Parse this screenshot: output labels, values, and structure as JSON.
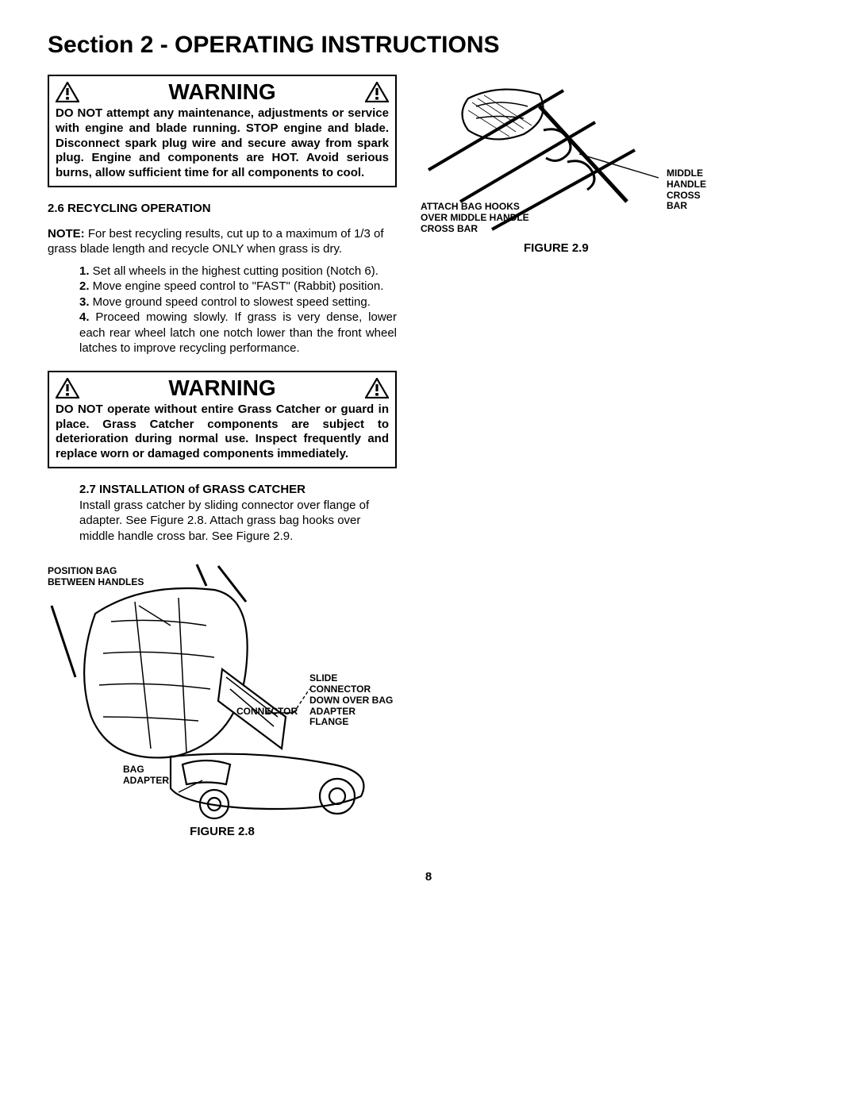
{
  "page": {
    "title": "Section 2 - OPERATING INSTRUCTIONS",
    "pageNumber": "8"
  },
  "warning1": {
    "title": "WARNING",
    "body": "DO NOT attempt any maintenance, adjustments or service with engine and blade running. STOP engine and blade. Disconnect spark plug wire and secure away from spark plug. Engine and components are HOT. Avoid serious burns, allow sufficient time for all components to cool."
  },
  "section26": {
    "heading": "2.6 RECYCLING OPERATION",
    "noteLabel": "NOTE:",
    "noteBody": " For best recycling results, cut up to a maximum of 1/3 of grass blade length and recycle ONLY when grass is dry.",
    "step1num": "1.",
    "step1": " Set all wheels in the highest cutting position (Notch 6).",
    "step2num": "2.",
    "step2": " Move engine speed control to \"FAST\" (Rabbit) position.",
    "step3num": "3.",
    "step3": " Move ground speed control to slowest speed setting.",
    "step4num": "4.",
    "step4": " Proceed mowing slowly. If grass is very dense, lower each rear wheel latch one notch lower than the front wheel latches to improve recycling performance."
  },
  "warning2": {
    "title": "WARNING",
    "body": "DO NOT operate without entire Grass Catcher or guard in place. Grass Catcher components are subject to deterioration during normal use. Inspect frequently and replace worn or damaged components immediately."
  },
  "section27": {
    "heading": "2.7 INSTALLATION of GRASS CATCHER",
    "body": "Install grass catcher by sliding connector over flange of adapter. See Figure 2.8. Attach grass bag hooks over middle handle cross bar. See Figure 2.9."
  },
  "figure28": {
    "caption": "FIGURE 2.8",
    "label1": "POSITION BAG\nBETWEEN HANDLES",
    "label2": "CONNECTOR",
    "label3": "SLIDE\nCONNECTOR\nDOWN OVER BAG\nADAPTER FLANGE",
    "label4": "BAG\nADAPTER"
  },
  "figure29": {
    "caption": "FIGURE 2.9",
    "label1": "ATTACH BAG HOOKS\nOVER MIDDLE HANDLE\nCROSS BAR",
    "label2": "MIDDLE\nHANDLE\nCROSS\nBAR"
  },
  "colors": {
    "ink": "#000000",
    "bg": "#ffffff"
  }
}
